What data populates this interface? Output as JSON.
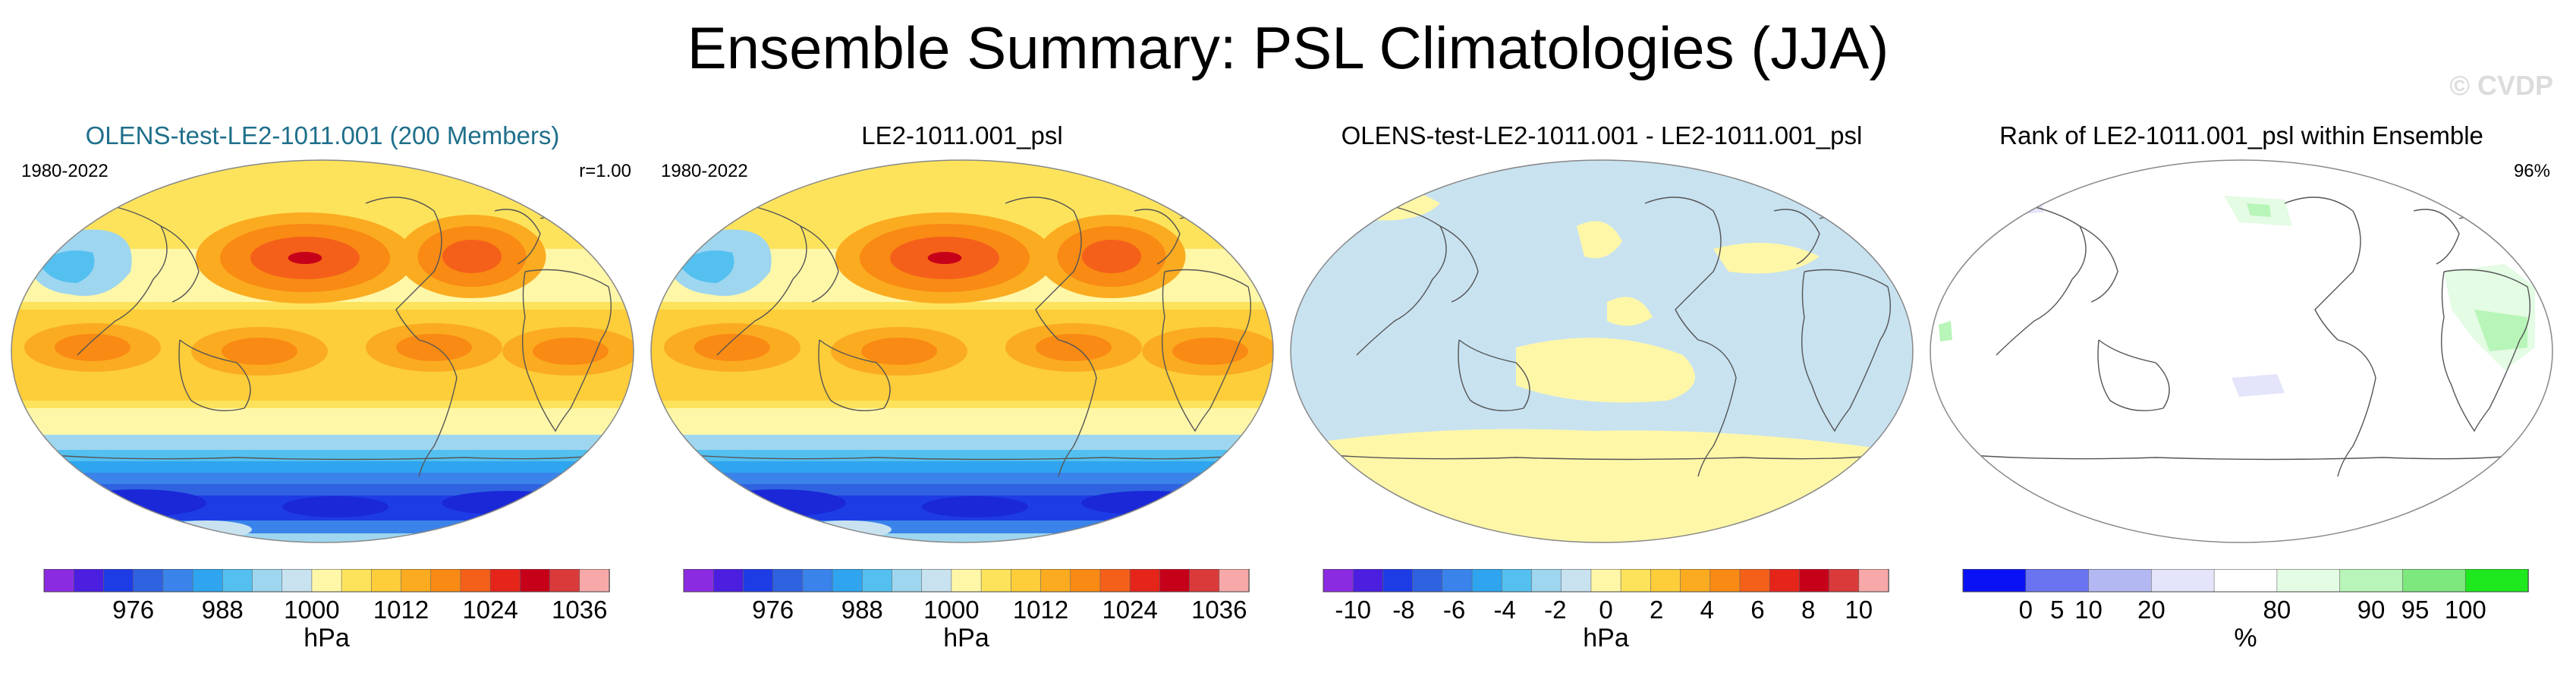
{
  "title": "Ensemble Summary: PSL Climatologies (JJA)",
  "watermark": "© CVDP",
  "panels": [
    {
      "title": "OLENS-test-LE2-1011.001 (200 Members)",
      "title_color": "#1f6f8b",
      "left_label": "1980-2022",
      "right_label": "r=1.00",
      "map_type": "climatology",
      "colorbar": {
        "units": "hPa",
        "ticks": [
          "976",
          "988",
          "1000",
          "1012",
          "1024",
          "1036"
        ],
        "colors": [
          "#8a2be2",
          "#4b1ee0",
          "#1e3ce6",
          "#2f62e0",
          "#3a83ea",
          "#2fa4ef",
          "#53c0f0",
          "#9fd6ef",
          "#c8e2f0",
          "#fff7a8",
          "#fde35c",
          "#fdcd3a",
          "#fbab20",
          "#f98a14",
          "#f4601a",
          "#e5241a",
          "#c7001a",
          "#da3a3a",
          "#f7a8a8"
        ],
        "tick_positions": [
          3.0,
          6.0,
          9.0,
          12.0,
          15.0,
          18.0
        ]
      }
    },
    {
      "title": "LE2-1011.001_psl",
      "title_color": "#000000",
      "left_label": "1980-2022",
      "right_label": "",
      "map_type": "climatology",
      "colorbar": {
        "units": "hPa",
        "ticks": [
          "976",
          "988",
          "1000",
          "1012",
          "1024",
          "1036"
        ],
        "colors": [
          "#8a2be2",
          "#4b1ee0",
          "#1e3ce6",
          "#2f62e0",
          "#3a83ea",
          "#2fa4ef",
          "#53c0f0",
          "#9fd6ef",
          "#c8e2f0",
          "#fff7a8",
          "#fde35c",
          "#fdcd3a",
          "#fbab20",
          "#f98a14",
          "#f4601a",
          "#e5241a",
          "#c7001a",
          "#da3a3a",
          "#f7a8a8"
        ],
        "tick_positions": [
          3.0,
          6.0,
          9.0,
          12.0,
          15.0,
          18.0
        ]
      }
    },
    {
      "title": "OLENS-test-LE2-1011.001 - LE2-1011.001_psl",
      "title_color": "#000000",
      "left_label": "",
      "right_label": "",
      "map_type": "difference",
      "colorbar": {
        "units": "hPa",
        "ticks": [
          "-10",
          "-8",
          "-6",
          "-4",
          "-2",
          "0",
          "2",
          "4",
          "6",
          "8",
          "10"
        ],
        "colors": [
          "#8a2be2",
          "#4b1ee0",
          "#1e3ce6",
          "#2f62e0",
          "#3a83ea",
          "#2fa4ef",
          "#53c0f0",
          "#9fd6ef",
          "#c8e2f0",
          "#fff7a8",
          "#fde35c",
          "#fdcd3a",
          "#fbab20",
          "#f98a14",
          "#f4601a",
          "#e5241a",
          "#c7001a",
          "#da3a3a",
          "#f7a8a8"
        ],
        "tick_positions": [
          1.0,
          2.7,
          4.4,
          6.1,
          7.8,
          9.5,
          11.2,
          12.9,
          14.6,
          16.3,
          18.0
        ]
      }
    },
    {
      "title": "Rank of LE2-1011.001_psl within Ensemble",
      "title_color": "#000000",
      "left_label": "",
      "right_label": "96%",
      "map_type": "rank",
      "colorbar": {
        "units": "%",
        "ticks": [
          "0",
          "5",
          "10",
          "20",
          "80",
          "90",
          "95",
          "100"
        ],
        "colors": [
          "#0a12f5",
          "#6b74f0",
          "#b4b8f2",
          "#e4e5fb",
          "#ffffff",
          "#e4fbe4",
          "#b8f5b8",
          "#7de87d",
          "#1ee81e"
        ],
        "tick_positions": [
          1.0,
          1.5,
          2.0,
          3.0,
          5.0,
          6.5,
          7.2,
          8.0
        ]
      }
    }
  ]
}
